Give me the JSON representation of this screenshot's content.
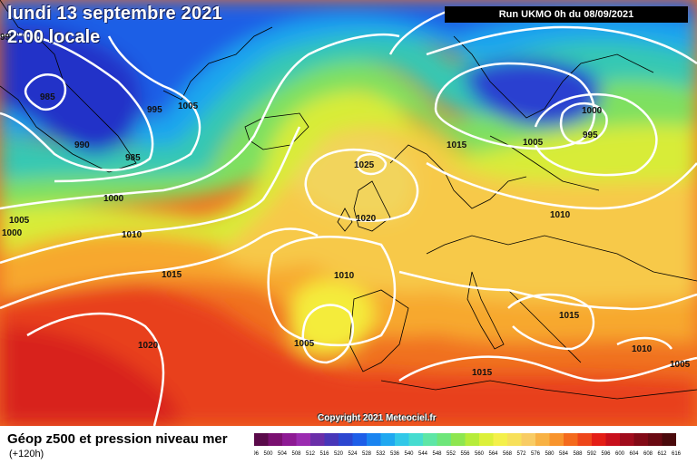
{
  "map": {
    "date_line": "lundi 13 septembre 2021",
    "time_line": "2:00 locale",
    "run_label": "Run UKMO 0h du 08/09/2021",
    "copyright": "Copyright 2021 Meteociel.fr",
    "title": "Géop z500 et pression niveau mer",
    "subtitle": "(+120h)",
    "isobar_labels": [
      "985",
      "995",
      "1005",
      "990",
      "985",
      "1000",
      "1005",
      "1000",
      "1010",
      "1015",
      "1020",
      "1025",
      "1020",
      "1010",
      "1005",
      "1015",
      "1005",
      "1000",
      "995",
      "1010",
      "1015",
      "1010",
      "1005",
      "1015",
      "995"
    ],
    "scale": {
      "values": [
        "496",
        "500",
        "504",
        "508",
        "512",
        "516",
        "520",
        "524",
        "528",
        "532",
        "536",
        "540",
        "544",
        "548",
        "552",
        "556",
        "560",
        "564",
        "568",
        "572",
        "576",
        "580",
        "584",
        "588",
        "592",
        "596",
        "600",
        "604",
        "608",
        "612",
        "616"
      ],
      "colors": [
        "#5a0a4a",
        "#7a1070",
        "#8e1a94",
        "#9b2bb0",
        "#6a2ea8",
        "#4836b8",
        "#2c46d0",
        "#1e5ee8",
        "#1a84f0",
        "#20a8f0",
        "#32c8e8",
        "#46dcd0",
        "#5ee6a6",
        "#6ee67a",
        "#8ee650",
        "#b6ec3a",
        "#dcf03a",
        "#f4f04a",
        "#f7e05a",
        "#f8cc64",
        "#f8b244",
        "#f8942c",
        "#f46a1c",
        "#ee461a",
        "#e41e16",
        "#c8101c",
        "#a00c1c",
        "#820a16",
        "#6a0a12",
        "#4a0a0c"
      ]
    }
  }
}
